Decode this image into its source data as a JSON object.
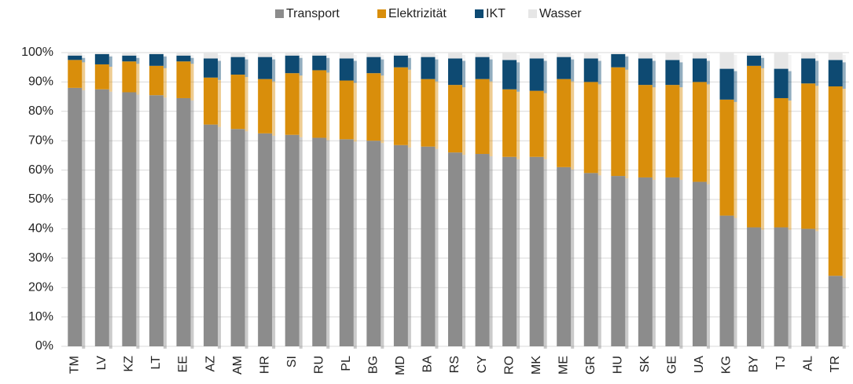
{
  "chart_data": {
    "type": "stacked_bar",
    "categories": [
      "TM",
      "LV",
      "KZ",
      "LT",
      "EE",
      "AZ",
      "AM",
      "HR",
      "SI",
      "RU",
      "PL",
      "BG",
      "MD",
      "BA",
      "RS",
      "CY",
      "RO",
      "MK",
      "ME",
      "GR",
      "HU",
      "SK",
      "GE",
      "UA",
      "KG",
      "BY",
      "TJ",
      "AL",
      "TR"
    ],
    "series": [
      {
        "name": "Transport",
        "color": "#8c8c8c",
        "values": [
          88,
          87.5,
          86.5,
          85.5,
          84.5,
          75.5,
          74,
          72.5,
          72,
          71,
          70.5,
          70,
          68.5,
          68,
          66,
          65.5,
          64.5,
          64.5,
          61,
          59,
          58,
          57.5,
          57.5,
          56,
          44.5,
          40.5,
          40.5,
          40,
          24
        ]
      },
      {
        "name": "Elektrizität",
        "color": "#d98e0b",
        "values": [
          9.5,
          8.5,
          10.5,
          10,
          12.5,
          16,
          18.5,
          18.5,
          21,
          23,
          20,
          23,
          26.5,
          23,
          23,
          25.5,
          23,
          22.5,
          30,
          31,
          37,
          31.5,
          31.5,
          34,
          39.5,
          55,
          44,
          49.5,
          64.5
        ]
      },
      {
        "name": "IKT",
        "color": "#0e4a72",
        "values": [
          1.5,
          3.5,
          2,
          4,
          2,
          6.5,
          6,
          7.5,
          6,
          5,
          7.5,
          5.5,
          4,
          7.5,
          9,
          7.5,
          10,
          11,
          7.5,
          8,
          4.5,
          9,
          8.5,
          8,
          10.5,
          3.5,
          10,
          8.5,
          9
        ]
      },
      {
        "name": "Wasser",
        "color": "#e6e6e6",
        "values": [
          1,
          0.5,
          1,
          0.5,
          1,
          2,
          1.5,
          1.5,
          1,
          1,
          2,
          1.5,
          1,
          1.5,
          2,
          1.5,
          2.5,
          2,
          1.5,
          2,
          0.5,
          2,
          2.5,
          2,
          5.5,
          1,
          5.5,
          2,
          2.5
        ]
      }
    ],
    "ylim": [
      0,
      100
    ],
    "yticks": [
      {
        "value": 0,
        "label": "0%"
      },
      {
        "value": 10,
        "label": "10%"
      },
      {
        "value": 20,
        "label": "20%"
      },
      {
        "value": 30,
        "label": "30%"
      },
      {
        "value": 40,
        "label": "40%"
      },
      {
        "value": 50,
        "label": "50%"
      },
      {
        "value": 60,
        "label": "60%"
      },
      {
        "value": 70,
        "label": "70%"
      },
      {
        "value": 80,
        "label": "80%"
      },
      {
        "value": 90,
        "label": "90%"
      },
      {
        "value": 100,
        "label": "100%"
      }
    ],
    "grid": true
  }
}
